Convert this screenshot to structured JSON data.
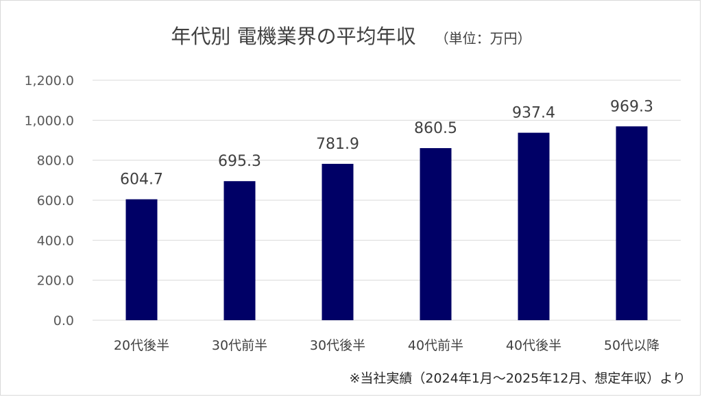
{
  "title": "年代別 電機業界の平均年収",
  "unit_note": "（単位：万円）",
  "footnote": "※当社実績（2024年1月～2025年12月、想定年収）より",
  "colors": {
    "bar": "#000066",
    "grid": "#d9d9d9"
  },
  "chart_data": {
    "type": "bar",
    "title": "年代別 電機業界の平均年収",
    "xlabel": "",
    "ylabel": "",
    "categories": [
      "20代後半",
      "30代前半",
      "30代後半",
      "40代前半",
      "40代後半",
      "50代以降"
    ],
    "values": [
      604.7,
      695.3,
      781.9,
      860.5,
      937.4,
      969.3
    ],
    "value_labels": [
      "604.7",
      "695.3",
      "781.9",
      "860.5",
      "937.4",
      "969.3"
    ],
    "ylim": [
      0,
      1200
    ],
    "yticks": [
      0,
      200,
      400,
      600,
      800,
      1000,
      1200
    ],
    "ytick_labels": [
      "0.0",
      "200.0",
      "400.0",
      "600.0",
      "800.0",
      "1,000.0",
      "1,200.0"
    ],
    "grid": true,
    "legend": "none"
  }
}
